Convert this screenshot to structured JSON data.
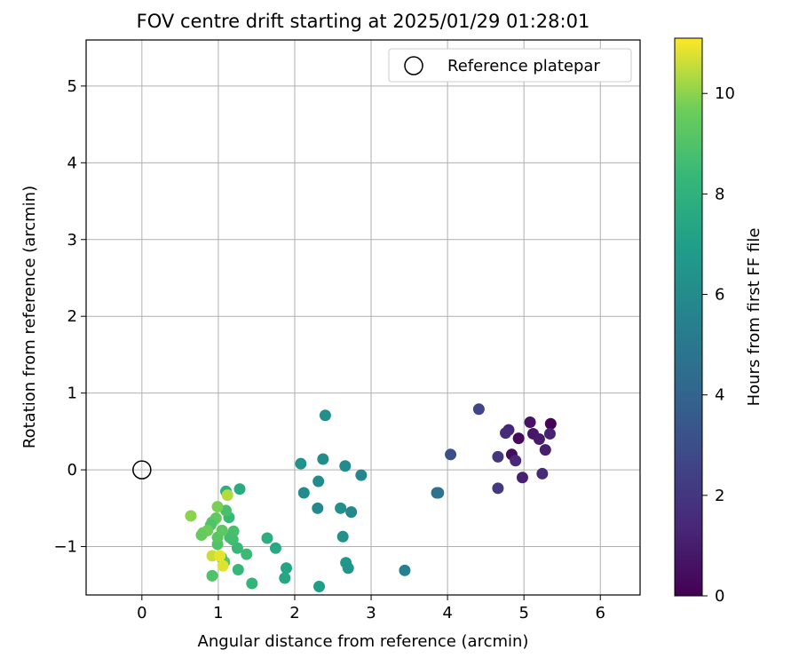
{
  "chart_data": {
    "type": "scatter",
    "title": "FOV centre drift starting at 2025/01/29 01:28:01",
    "xlabel": "Angular distance from reference (arcmin)",
    "ylabel": "Rotation from reference (arcmin)",
    "xlim": [
      -0.73,
      6.52
    ],
    "ylim": [
      -1.63,
      5.6
    ],
    "xticks": [
      0,
      1,
      2,
      3,
      4,
      5,
      6
    ],
    "yticks": [
      -1,
      0,
      1,
      2,
      3,
      4,
      5
    ],
    "grid": true,
    "legend": {
      "placement": "top-right",
      "entries": [
        "Reference platepar"
      ]
    },
    "reference_point": {
      "x": 0,
      "y": 0,
      "label": "Reference platepar",
      "marker": "open-circle"
    },
    "colorbar": {
      "label": "Hours from first FF file",
      "min": 0,
      "max": 11.1,
      "ticks": [
        0,
        2,
        4,
        6,
        8,
        10
      ],
      "colormap": "viridis"
    },
    "points": [
      {
        "x": 5.35,
        "y": 0.6,
        "c": 0.1
      },
      {
        "x": 4.93,
        "y": 0.41,
        "c": 0.25
      },
      {
        "x": 4.84,
        "y": 0.2,
        "c": 0.35
      },
      {
        "x": 5.08,
        "y": 0.62,
        "c": 0.6
      },
      {
        "x": 5.12,
        "y": 0.47,
        "c": 0.8
      },
      {
        "x": 5.2,
        "y": 0.4,
        "c": 0.9
      },
      {
        "x": 5.28,
        "y": 0.26,
        "c": 1.0
      },
      {
        "x": 4.98,
        "y": -0.1,
        "c": 1.1
      },
      {
        "x": 5.34,
        "y": 0.47,
        "c": 1.2
      },
      {
        "x": 4.8,
        "y": 0.52,
        "c": 1.3
      },
      {
        "x": 4.89,
        "y": 0.12,
        "c": 1.4
      },
      {
        "x": 5.24,
        "y": -0.05,
        "c": 1.5
      },
      {
        "x": 4.76,
        "y": 0.48,
        "c": 1.6
      },
      {
        "x": 4.66,
        "y": 0.17,
        "c": 2.0
      },
      {
        "x": 4.66,
        "y": -0.24,
        "c": 2.1
      },
      {
        "x": 4.41,
        "y": 0.79,
        "c": 2.6
      },
      {
        "x": 4.04,
        "y": 0.2,
        "c": 3.1
      },
      {
        "x": 3.86,
        "y": -0.3,
        "c": 4.4
      },
      {
        "x": 3.88,
        "y": -0.3,
        "c": 4.7
      },
      {
        "x": 3.44,
        "y": -1.31,
        "c": 5.5
      },
      {
        "x": 2.87,
        "y": -0.07,
        "c": 5.8
      },
      {
        "x": 2.66,
        "y": 0.05,
        "c": 6.0
      },
      {
        "x": 2.74,
        "y": -0.55,
        "c": 5.9
      },
      {
        "x": 2.6,
        "y": -0.5,
        "c": 6.2
      },
      {
        "x": 2.63,
        "y": -0.87,
        "c": 6.3
      },
      {
        "x": 2.4,
        "y": 0.71,
        "c": 6.2
      },
      {
        "x": 2.37,
        "y": 0.14,
        "c": 6.1
      },
      {
        "x": 2.31,
        "y": -0.15,
        "c": 6.0
      },
      {
        "x": 2.3,
        "y": -0.5,
        "c": 5.9
      },
      {
        "x": 2.12,
        "y": -0.3,
        "c": 6.0
      },
      {
        "x": 2.08,
        "y": 0.08,
        "c": 6.4
      },
      {
        "x": 2.67,
        "y": -1.21,
        "c": 6.6
      },
      {
        "x": 2.7,
        "y": -1.28,
        "c": 6.5
      },
      {
        "x": 2.32,
        "y": -1.52,
        "c": 7.0
      },
      {
        "x": 1.89,
        "y": -1.28,
        "c": 7.3
      },
      {
        "x": 1.87,
        "y": -1.41,
        "c": 7.4
      },
      {
        "x": 1.75,
        "y": -1.02,
        "c": 7.5
      },
      {
        "x": 1.64,
        "y": -0.89,
        "c": 7.8
      },
      {
        "x": 1.28,
        "y": -0.25,
        "c": 7.6
      },
      {
        "x": 1.1,
        "y": -0.28,
        "c": 7.9
      },
      {
        "x": 1.44,
        "y": -1.48,
        "c": 8.2
      },
      {
        "x": 1.26,
        "y": -1.3,
        "c": 8.3
      },
      {
        "x": 1.37,
        "y": -1.1,
        "c": 8.5
      },
      {
        "x": 1.25,
        "y": -1.02,
        "c": 8.4
      },
      {
        "x": 1.19,
        "y": -0.91,
        "c": 8.6
      },
      {
        "x": 1.15,
        "y": -0.88,
        "c": 8.7
      },
      {
        "x": 1.2,
        "y": -0.8,
        "c": 8.8
      },
      {
        "x": 1.14,
        "y": -0.62,
        "c": 8.4
      },
      {
        "x": 1.1,
        "y": -0.53,
        "c": 8.8
      },
      {
        "x": 0.92,
        "y": -1.38,
        "c": 9.0
      },
      {
        "x": 1.08,
        "y": -1.2,
        "c": 9.2
      },
      {
        "x": 1.04,
        "y": -1.14,
        "c": 9.1
      },
      {
        "x": 0.99,
        "y": -0.97,
        "c": 9.0
      },
      {
        "x": 0.99,
        "y": -0.88,
        "c": 9.2
      },
      {
        "x": 1.05,
        "y": -0.79,
        "c": 9.3
      },
      {
        "x": 0.97,
        "y": -0.63,
        "c": 9.4
      },
      {
        "x": 0.92,
        "y": -0.68,
        "c": 9.3
      },
      {
        "x": 0.9,
        "y": -0.72,
        "c": 9.0
      },
      {
        "x": 0.86,
        "y": -0.79,
        "c": 9.6
      },
      {
        "x": 0.8,
        "y": -0.82,
        "c": 9.7
      },
      {
        "x": 0.78,
        "y": -0.85,
        "c": 9.5
      },
      {
        "x": 0.64,
        "y": -0.6,
        "c": 10.0
      },
      {
        "x": 0.99,
        "y": -0.48,
        "c": 9.8
      },
      {
        "x": 1.12,
        "y": -0.33,
        "c": 10.4
      },
      {
        "x": 0.92,
        "y": -1.12,
        "c": 10.6
      },
      {
        "x": 1.06,
        "y": -1.25,
        "c": 10.8
      },
      {
        "x": 1.02,
        "y": -1.12,
        "c": 10.9
      }
    ]
  }
}
